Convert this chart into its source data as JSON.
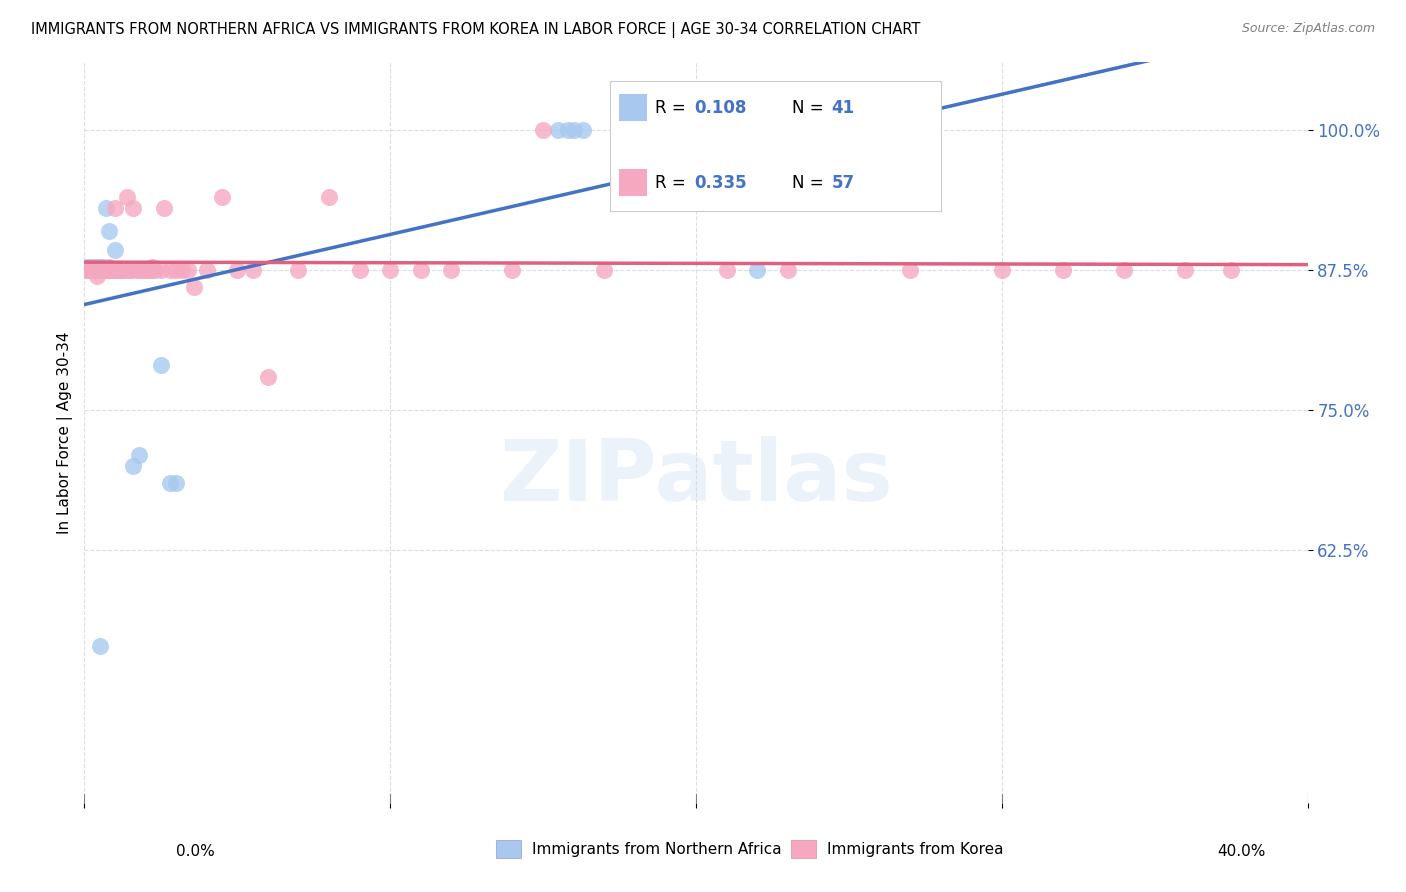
{
  "title": "IMMIGRANTS FROM NORTHERN AFRICA VS IMMIGRANTS FROM KOREA IN LABOR FORCE | AGE 30-34 CORRELATION CHART",
  "source": "Source: ZipAtlas.com",
  "ylabel": "In Labor Force | Age 30-34",
  "R1": 0.108,
  "N1": 41,
  "R2": 0.335,
  "N2": 57,
  "color_blue_fill": "#A8C8F0",
  "color_pink_fill": "#F5A8C0",
  "color_blue_line": "#4472C4",
  "color_pink_line": "#E06080",
  "color_blue_text": "#4472C4",
  "background": "#FFFFFF",
  "grid_color": "#DDDDDD",
  "legend1_label": "Immigrants from Northern Africa",
  "legend2_label": "Immigrants from Korea",
  "xlim": [
    0.0,
    0.4
  ],
  "ylim": [
    0.4,
    1.06
  ],
  "yticks": [
    0.625,
    0.75,
    0.875,
    1.0
  ],
  "ytick_labels": [
    "62.5%",
    "75.0%",
    "87.5%",
    "100.0%"
  ],
  "blue_x": [
    0.001,
    0.001,
    0.002,
    0.002,
    0.003,
    0.003,
    0.003,
    0.004,
    0.004,
    0.004,
    0.005,
    0.005,
    0.005,
    0.006,
    0.006,
    0.006,
    0.007,
    0.007,
    0.008,
    0.008,
    0.009,
    0.009,
    0.01,
    0.01,
    0.011,
    0.012,
    0.013,
    0.015,
    0.016,
    0.018,
    0.02,
    0.022,
    0.025,
    0.028,
    0.155,
    0.158,
    0.16,
    0.163,
    0.22,
    0.03,
    0.005
  ],
  "blue_y": [
    0.875,
    0.878,
    0.875,
    0.878,
    0.875,
    0.878,
    0.875,
    0.875,
    0.878,
    0.875,
    0.875,
    0.878,
    0.875,
    0.875,
    0.878,
    0.875,
    0.93,
    0.875,
    0.91,
    0.875,
    0.875,
    0.875,
    0.893,
    0.875,
    0.875,
    0.875,
    0.875,
    0.875,
    0.7,
    0.71,
    0.875,
    0.875,
    0.79,
    0.685,
    1.0,
    1.0,
    1.0,
    1.0,
    0.875,
    0.685,
    0.54
  ],
  "pink_x": [
    0.001,
    0.002,
    0.003,
    0.004,
    0.004,
    0.005,
    0.006,
    0.006,
    0.007,
    0.008,
    0.008,
    0.009,
    0.01,
    0.01,
    0.011,
    0.012,
    0.013,
    0.014,
    0.015,
    0.015,
    0.016,
    0.017,
    0.018,
    0.019,
    0.02,
    0.021,
    0.022,
    0.023,
    0.025,
    0.026,
    0.028,
    0.03,
    0.032,
    0.034,
    0.036,
    0.04,
    0.045,
    0.05,
    0.055,
    0.06,
    0.07,
    0.08,
    0.09,
    0.1,
    0.11,
    0.12,
    0.14,
    0.15,
    0.17,
    0.21,
    0.23,
    0.27,
    0.3,
    0.32,
    0.34,
    0.36,
    0.375
  ],
  "pink_y": [
    0.875,
    0.875,
    0.875,
    0.87,
    0.875,
    0.875,
    0.875,
    0.875,
    0.875,
    0.875,
    0.878,
    0.875,
    0.93,
    0.875,
    0.875,
    0.875,
    0.875,
    0.94,
    0.875,
    0.875,
    0.93,
    0.875,
    0.875,
    0.875,
    0.875,
    0.875,
    0.878,
    0.875,
    0.875,
    0.93,
    0.875,
    0.875,
    0.875,
    0.875,
    0.86,
    0.875,
    0.94,
    0.875,
    0.875,
    0.78,
    0.875,
    0.94,
    0.875,
    0.875,
    0.875,
    0.875,
    0.875,
    1.0,
    0.875,
    0.875,
    0.875,
    0.875,
    0.875,
    0.875,
    0.875,
    0.875,
    0.875
  ]
}
